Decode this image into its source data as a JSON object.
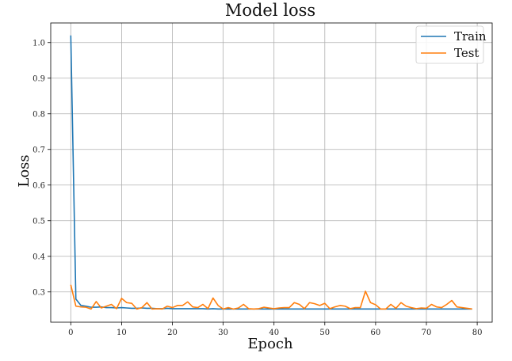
{
  "chart_data": {
    "type": "line",
    "title": "Model loss",
    "xlabel": "Epoch",
    "ylabel": "Loss",
    "xlim": [
      -3.95,
      82.95
    ],
    "ylim": [
      0.215,
      1.055
    ],
    "x_ticks": [
      0,
      10,
      20,
      30,
      40,
      50,
      60,
      70,
      80
    ],
    "y_ticks": [
      0.3,
      0.4,
      0.5,
      0.6,
      0.7,
      0.8,
      0.9,
      1.0
    ],
    "grid": true,
    "legend_position": "top-right",
    "x": [
      0,
      1,
      2,
      3,
      4,
      5,
      6,
      7,
      8,
      9,
      10,
      11,
      12,
      13,
      14,
      15,
      16,
      17,
      18,
      19,
      20,
      21,
      22,
      23,
      24,
      25,
      26,
      27,
      28,
      29,
      30,
      31,
      32,
      33,
      34,
      35,
      36,
      37,
      38,
      39,
      40,
      41,
      42,
      43,
      44,
      45,
      46,
      47,
      48,
      49,
      50,
      51,
      52,
      53,
      54,
      55,
      56,
      57,
      58,
      59,
      60,
      61,
      62,
      63,
      64,
      65,
      66,
      67,
      68,
      69,
      70,
      71,
      72,
      73,
      74,
      75,
      76,
      77,
      78,
      79
    ],
    "series": [
      {
        "name": "Train",
        "color": "#1f77b4",
        "values": [
          1.02,
          0.28,
          0.262,
          0.26,
          0.257,
          0.257,
          0.258,
          0.256,
          0.256,
          0.255,
          0.256,
          0.255,
          0.254,
          0.254,
          0.255,
          0.254,
          0.254,
          0.253,
          0.253,
          0.254,
          0.253,
          0.253,
          0.253,
          0.253,
          0.253,
          0.253,
          0.253,
          0.252,
          0.253,
          0.252,
          0.252,
          0.252,
          0.252,
          0.252,
          0.252,
          0.252,
          0.252,
          0.252,
          0.252,
          0.252,
          0.252,
          0.252,
          0.252,
          0.252,
          0.252,
          0.252,
          0.252,
          0.252,
          0.252,
          0.252,
          0.252,
          0.252,
          0.252,
          0.252,
          0.252,
          0.252,
          0.252,
          0.252,
          0.252,
          0.252,
          0.252,
          0.252,
          0.252,
          0.252,
          0.252,
          0.252,
          0.252,
          0.252,
          0.252,
          0.252,
          0.252,
          0.252,
          0.252,
          0.252,
          0.252,
          0.252,
          0.252,
          0.252,
          0.252,
          0.252
        ]
      },
      {
        "name": "Test",
        "color": "#ff7f0e",
        "values": [
          0.32,
          0.26,
          0.258,
          0.257,
          0.252,
          0.273,
          0.255,
          0.26,
          0.265,
          0.253,
          0.282,
          0.27,
          0.268,
          0.252,
          0.256,
          0.27,
          0.252,
          0.253,
          0.252,
          0.26,
          0.256,
          0.262,
          0.262,
          0.272,
          0.258,
          0.256,
          0.265,
          0.253,
          0.283,
          0.262,
          0.252,
          0.256,
          0.252,
          0.255,
          0.265,
          0.253,
          0.252,
          0.253,
          0.257,
          0.255,
          0.253,
          0.255,
          0.256,
          0.256,
          0.27,
          0.265,
          0.253,
          0.27,
          0.267,
          0.262,
          0.268,
          0.253,
          0.258,
          0.262,
          0.26,
          0.253,
          0.256,
          0.256,
          0.302,
          0.27,
          0.264,
          0.252,
          0.252,
          0.265,
          0.254,
          0.27,
          0.26,
          0.256,
          0.253,
          0.255,
          0.254,
          0.265,
          0.258,
          0.256,
          0.265,
          0.276,
          0.258,
          0.256,
          0.254,
          0.252
        ]
      }
    ]
  }
}
